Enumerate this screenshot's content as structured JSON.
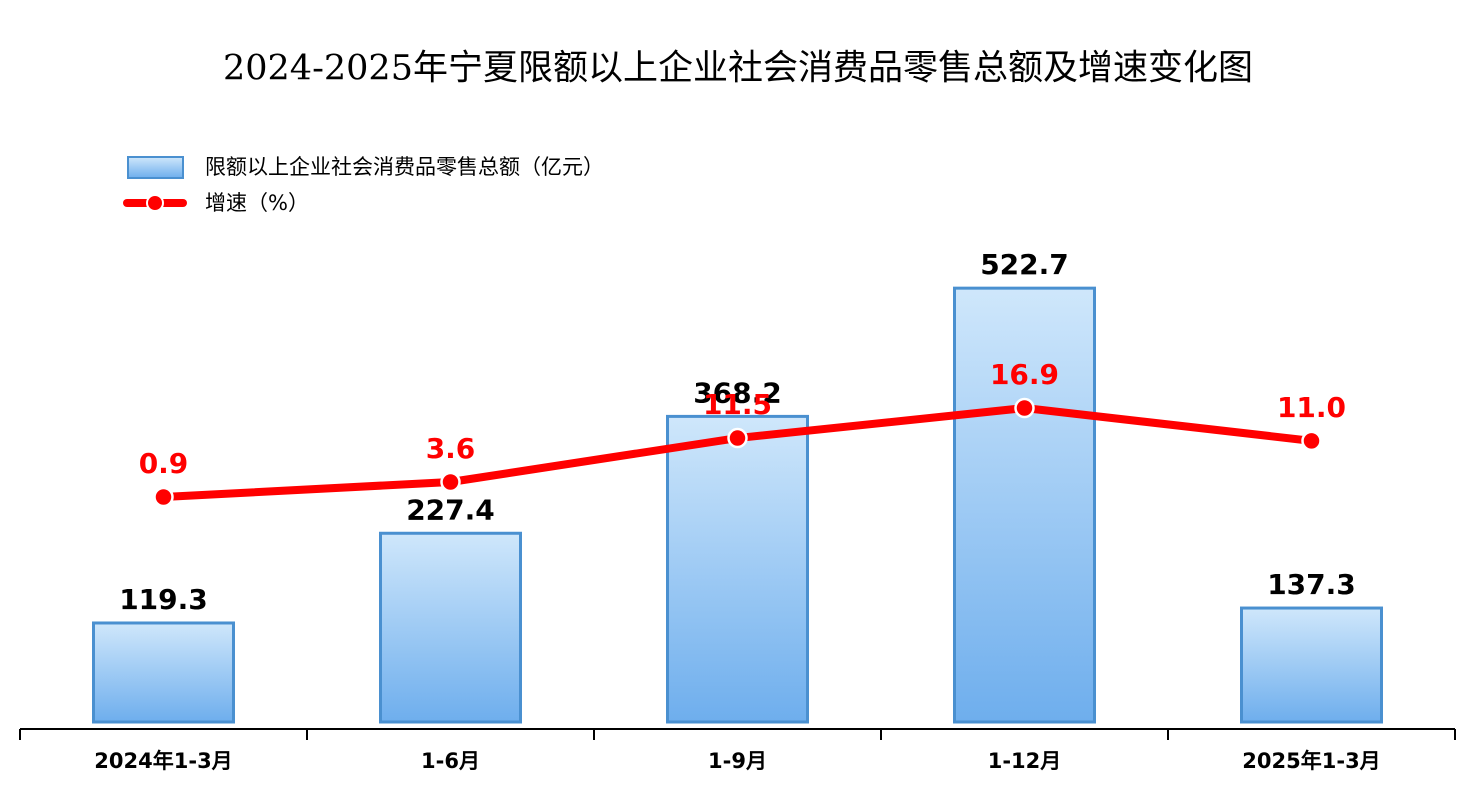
{
  "chart_data": {
    "type": "combo",
    "title": "2024-2025年宁夏限额以上企业社会消费品零售总额及增速变化图",
    "categories": [
      "2024年1-3月",
      "1-6月",
      "1-9月",
      "1-12月",
      "2025年1-3月"
    ],
    "series": [
      {
        "name": "限额以上企业社会消费品零售总额（亿元）",
        "type": "bar",
        "color": "#4a90d0",
        "values": [
          119.3,
          227.4,
          368.2,
          522.7,
          137.3
        ]
      },
      {
        "name": "增速（%）",
        "type": "line",
        "axis": "y2",
        "color": "#ff0000",
        "values": [
          0.9,
          3.6,
          11.5,
          16.9,
          11.0
        ],
        "value_labels": [
          "0.9",
          "3.6",
          "11.5",
          "16.9",
          "11.0"
        ]
      }
    ],
    "legend": "top-left"
  }
}
